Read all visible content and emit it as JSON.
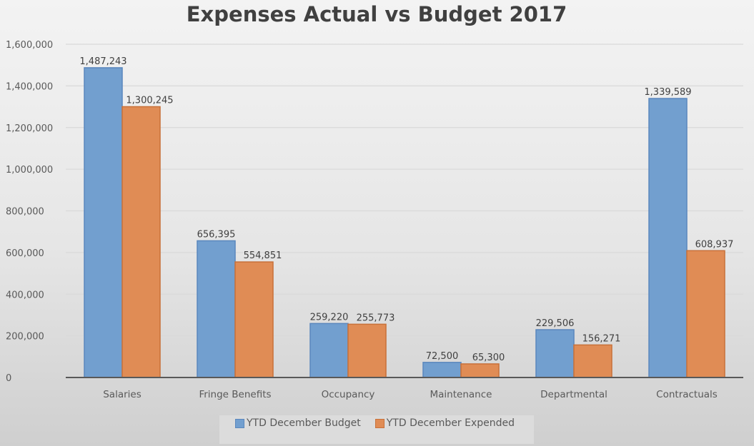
{
  "chart_data": {
    "type": "bar",
    "title": "Expenses Actual vs Budget 2017",
    "xlabel": "",
    "ylabel": "",
    "ylim": [
      0,
      1600000
    ],
    "yticks": [
      0,
      200000,
      400000,
      600000,
      800000,
      1000000,
      1200000,
      1400000,
      1600000
    ],
    "ytick_labels": [
      "0",
      "200,000",
      "400,000",
      "600,000",
      "800,000",
      "1,000,000",
      "1,200,000",
      "1,400,000",
      "1,600,000"
    ],
    "grid": true,
    "legend_position": "bottom",
    "categories": [
      "Salaries",
      "Fringe Benefits",
      "Occupancy",
      "Maintenance",
      "Departmental",
      "Contractuals"
    ],
    "series": [
      {
        "name": "YTD December Budget",
        "color": "#729fcf",
        "border": "#5a87bd",
        "values": [
          1487243,
          656395,
          259220,
          72500,
          229506,
          1339589
        ],
        "labels": [
          "1,487,243",
          "656,395",
          "259,220",
          "72,500",
          "229,506",
          "1,339,589"
        ]
      },
      {
        "name": "YTD December Expended",
        "color": "#e08c55",
        "border": "#c8713a",
        "values": [
          1300245,
          554851,
          255773,
          65300,
          156271,
          608937
        ],
        "labels": [
          "1,300,245",
          "554,851",
          "255,773",
          "65,300",
          "156,271",
          "608,937"
        ]
      }
    ]
  }
}
